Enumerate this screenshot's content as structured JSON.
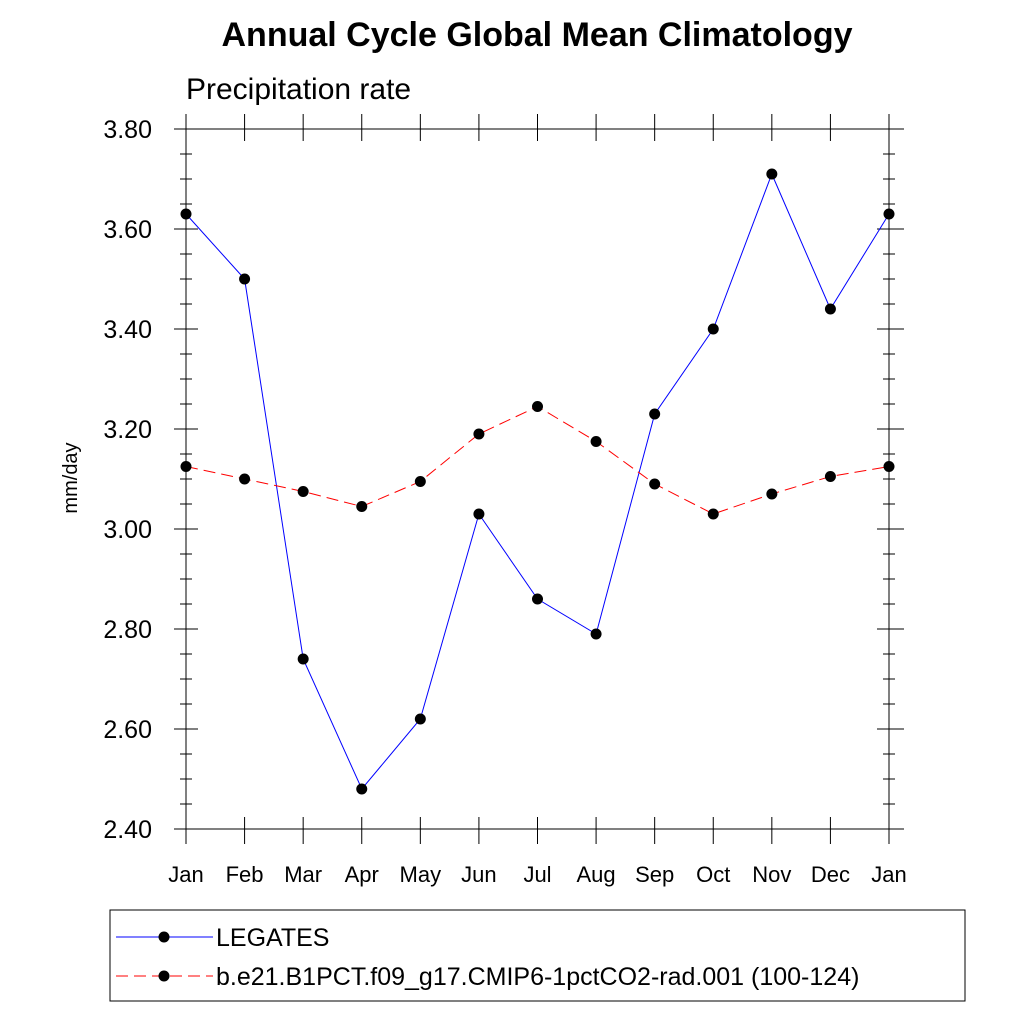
{
  "chart_data": {
    "type": "line",
    "title": "Annual Cycle Global Mean Climatology",
    "subtitle": "Precipitation rate",
    "xlabel": "",
    "ylabel": "mm/day",
    "categories": [
      "Jan",
      "Feb",
      "Mar",
      "Apr",
      "May",
      "Jun",
      "Jul",
      "Aug",
      "Sep",
      "Oct",
      "Nov",
      "Dec",
      "Jan"
    ],
    "ylim": [
      2.4,
      3.8
    ],
    "yticks": [
      "2.40",
      "2.60",
      "2.80",
      "3.00",
      "3.20",
      "3.40",
      "3.60",
      "3.80"
    ],
    "grid": false,
    "legend_position": "bottom",
    "series": [
      {
        "name": "LEGATES",
        "color": "#0000ff",
        "line_style": "solid",
        "marker": "filled-circle",
        "values": [
          3.63,
          3.5,
          2.74,
          2.48,
          2.62,
          3.03,
          2.86,
          2.79,
          3.23,
          3.4,
          3.71,
          3.44,
          3.63
        ]
      },
      {
        "name": "b.e21.B1PCT.f09_g17.CMIP6-1pctCO2-rad.001 (100-124)",
        "color": "#ff0000",
        "line_style": "dashed",
        "marker": "filled-circle",
        "values": [
          3.125,
          3.1,
          3.075,
          3.045,
          3.095,
          3.19,
          3.245,
          3.175,
          3.09,
          3.03,
          3.07,
          3.105,
          3.125
        ]
      }
    ]
  }
}
